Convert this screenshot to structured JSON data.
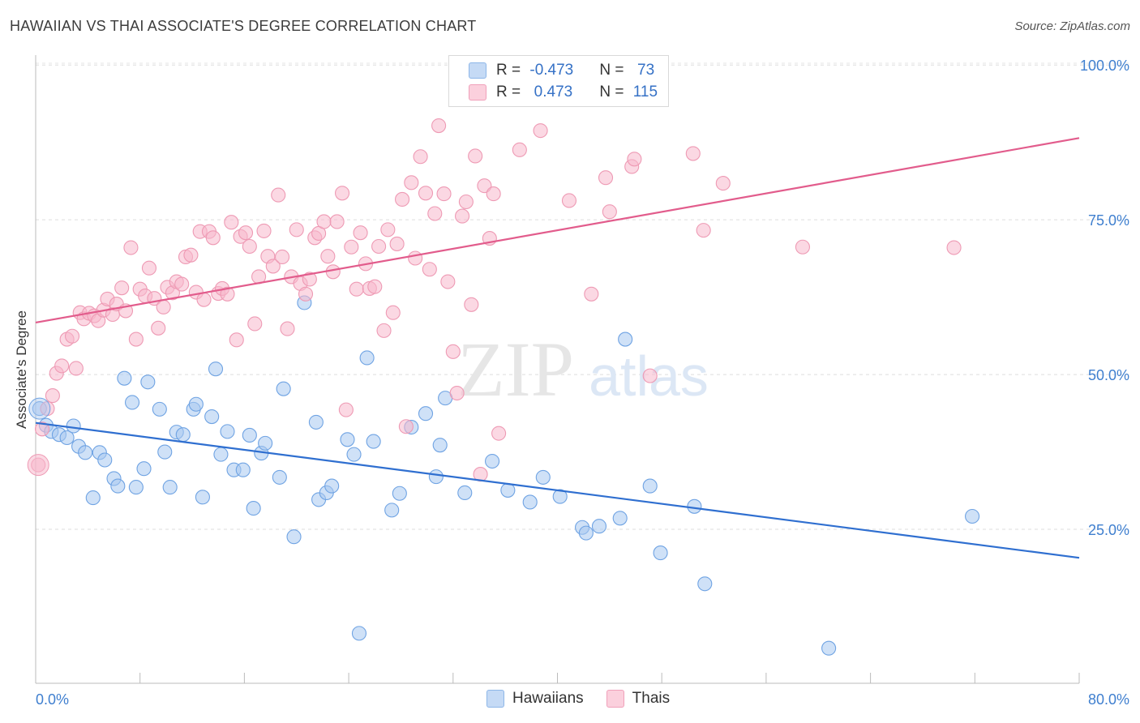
{
  "header": {
    "title": "HAWAIIAN VS THAI ASSOCIATE'S DEGREE CORRELATION CHART",
    "source": "Source: ZipAtlas.com"
  },
  "watermark": {
    "part1": "ZIP",
    "part2": "atlas"
  },
  "legend": {
    "rows": [
      {
        "r_label": "R = ",
        "r_value": "-0.473",
        "n_label": "N = ",
        "n_value": " 73",
        "color": "#a8c8f0"
      },
      {
        "r_label": "R = ",
        "r_value": " 0.473",
        "n_label": "N = ",
        "n_value": "115",
        "color": "#f8b8cc"
      }
    ],
    "bottom": [
      {
        "label": "Hawaiians",
        "color": "#a8c8f0"
      },
      {
        "label": "Thais",
        "color": "#f8b8cc"
      }
    ]
  },
  "chart_data": {
    "type": "scatter",
    "title": "HAWAIIAN VS THAI ASSOCIATE'S DEGREE CORRELATION CHART",
    "xlabel": "",
    "ylabel": "Associate's Degree",
    "xlim": [
      0,
      80
    ],
    "ylim": [
      0,
      105
    ],
    "x_tick_labels": [
      "0.0%",
      "80.0%"
    ],
    "y_ticks": [
      25,
      50,
      75,
      100
    ],
    "y_tick_labels": [
      "25.0%",
      "50.0%",
      "75.0%",
      "100.0%"
    ],
    "grid": true,
    "series": [
      {
        "name": "Hawaiians",
        "color": "#6fa3e3",
        "fill": "#a8c8f0",
        "trend": {
          "x": [
            0,
            80
          ],
          "y": [
            42.2,
            20.4
          ],
          "color": "#2f6fd0"
        },
        "points": [
          [
            0.3,
            44.5
          ],
          [
            0.8,
            41.8
          ],
          [
            1.2,
            40.8
          ],
          [
            1.8,
            40.3
          ],
          [
            2.4,
            39.8
          ],
          [
            2.9,
            41.7
          ],
          [
            3.3,
            38.4
          ],
          [
            3.8,
            37.4
          ],
          [
            4.4,
            30.1
          ],
          [
            4.9,
            37.4
          ],
          [
            5.3,
            36.2
          ],
          [
            6.0,
            33.2
          ],
          [
            6.3,
            32.0
          ],
          [
            6.8,
            49.4
          ],
          [
            7.4,
            45.5
          ],
          [
            7.7,
            31.8
          ],
          [
            8.3,
            34.8
          ],
          [
            8.6,
            48.8
          ],
          [
            9.5,
            44.4
          ],
          [
            9.9,
            37.5
          ],
          [
            10.3,
            31.8
          ],
          [
            10.8,
            40.7
          ],
          [
            11.3,
            40.3
          ],
          [
            12.1,
            44.4
          ],
          [
            12.3,
            45.2
          ],
          [
            12.8,
            30.2
          ],
          [
            13.5,
            43.2
          ],
          [
            13.8,
            50.9
          ],
          [
            14.2,
            37.1
          ],
          [
            14.7,
            40.8
          ],
          [
            15.2,
            34.6
          ],
          [
            15.9,
            34.6
          ],
          [
            16.4,
            40.2
          ],
          [
            16.7,
            28.4
          ],
          [
            17.3,
            37.3
          ],
          [
            17.6,
            38.9
          ],
          [
            18.7,
            33.4
          ],
          [
            19.0,
            47.7
          ],
          [
            19.8,
            23.8
          ],
          [
            20.6,
            61.6
          ],
          [
            21.5,
            42.3
          ],
          [
            21.7,
            29.8
          ],
          [
            22.3,
            30.9
          ],
          [
            22.7,
            32.0
          ],
          [
            23.9,
            39.5
          ],
          [
            24.4,
            37.1
          ],
          [
            24.8,
            8.2
          ],
          [
            25.4,
            52.7
          ],
          [
            25.9,
            39.2
          ],
          [
            27.3,
            28.1
          ],
          [
            27.9,
            30.8
          ],
          [
            28.8,
            41.5
          ],
          [
            29.9,
            43.7
          ],
          [
            30.7,
            33.5
          ],
          [
            31.0,
            38.6
          ],
          [
            31.4,
            46.2
          ],
          [
            32.9,
            30.9
          ],
          [
            35.0,
            36.0
          ],
          [
            36.2,
            31.3
          ],
          [
            37.9,
            29.4
          ],
          [
            38.9,
            33.4
          ],
          [
            40.2,
            30.3
          ],
          [
            41.9,
            25.3
          ],
          [
            42.2,
            24.4
          ],
          [
            43.2,
            25.5
          ],
          [
            44.8,
            26.8
          ],
          [
            45.2,
            55.7
          ],
          [
            47.1,
            32.0
          ],
          [
            47.9,
            21.2
          ],
          [
            50.5,
            28.7
          ],
          [
            51.3,
            16.2
          ],
          [
            60.8,
            5.8
          ],
          [
            71.8,
            27.1
          ]
        ]
      },
      {
        "name": "Thais",
        "color": "#ee9ab4",
        "fill": "#f8b8cc",
        "trend": {
          "x": [
            0,
            80
          ],
          "y": [
            58.4,
            88.2
          ],
          "color": "#e25c8c"
        },
        "points": [
          [
            0.2,
            35.4
          ],
          [
            0.5,
            41.2
          ],
          [
            0.9,
            44.5
          ],
          [
            1.3,
            46.6
          ],
          [
            1.6,
            50.2
          ],
          [
            2.0,
            51.4
          ],
          [
            2.4,
            55.7
          ],
          [
            2.8,
            56.2
          ],
          [
            3.1,
            51.0
          ],
          [
            3.4,
            60.0
          ],
          [
            3.7,
            59.0
          ],
          [
            4.1,
            59.9
          ],
          [
            4.5,
            59.5
          ],
          [
            4.8,
            58.7
          ],
          [
            5.2,
            60.4
          ],
          [
            5.5,
            62.2
          ],
          [
            5.9,
            59.7
          ],
          [
            6.2,
            61.4
          ],
          [
            6.6,
            64.0
          ],
          [
            6.9,
            60.3
          ],
          [
            7.3,
            70.5
          ],
          [
            7.7,
            55.7
          ],
          [
            8.0,
            63.8
          ],
          [
            8.4,
            62.7
          ],
          [
            8.7,
            67.2
          ],
          [
            9.1,
            62.3
          ],
          [
            9.4,
            57.5
          ],
          [
            9.8,
            60.9
          ],
          [
            10.1,
            64.1
          ],
          [
            10.5,
            63.2
          ],
          [
            10.8,
            65.0
          ],
          [
            11.2,
            64.6
          ],
          [
            11.5,
            69.0
          ],
          [
            11.9,
            69.3
          ],
          [
            12.3,
            63.3
          ],
          [
            12.6,
            73.1
          ],
          [
            12.9,
            62.1
          ],
          [
            13.3,
            73.1
          ],
          [
            13.6,
            72.1
          ],
          [
            14.0,
            63.1
          ],
          [
            14.3,
            63.9
          ],
          [
            14.7,
            63.0
          ],
          [
            15.0,
            74.6
          ],
          [
            15.4,
            55.6
          ],
          [
            15.7,
            72.3
          ],
          [
            16.1,
            72.9
          ],
          [
            16.4,
            70.7
          ],
          [
            16.8,
            58.2
          ],
          [
            17.1,
            65.8
          ],
          [
            17.5,
            73.2
          ],
          [
            17.8,
            69.1
          ],
          [
            18.2,
            67.5
          ],
          [
            18.6,
            79.0
          ],
          [
            18.9,
            69.0
          ],
          [
            19.3,
            57.4
          ],
          [
            19.6,
            65.8
          ],
          [
            20.0,
            73.4
          ],
          [
            20.3,
            64.7
          ],
          [
            20.7,
            63.0
          ],
          [
            21.0,
            65.4
          ],
          [
            21.4,
            72.1
          ],
          [
            21.7,
            72.8
          ],
          [
            22.1,
            74.7
          ],
          [
            22.4,
            69.1
          ],
          [
            22.8,
            66.6
          ],
          [
            23.1,
            74.7
          ],
          [
            23.5,
            79.3
          ],
          [
            23.8,
            44.3
          ],
          [
            24.2,
            70.6
          ],
          [
            24.6,
            63.8
          ],
          [
            24.9,
            72.9
          ],
          [
            25.3,
            67.9
          ],
          [
            25.6,
            63.9
          ],
          [
            26.0,
            64.2
          ],
          [
            26.3,
            70.7
          ],
          [
            26.7,
            57.1
          ],
          [
            27.0,
            73.4
          ],
          [
            27.4,
            60.0
          ],
          [
            27.7,
            71.1
          ],
          [
            28.1,
            78.3
          ],
          [
            28.4,
            41.6
          ],
          [
            28.8,
            81.0
          ],
          [
            29.1,
            68.8
          ],
          [
            29.5,
            85.2
          ],
          [
            29.9,
            79.3
          ],
          [
            30.2,
            67.0
          ],
          [
            30.6,
            76.0
          ],
          [
            30.9,
            90.2
          ],
          [
            31.3,
            79.2
          ],
          [
            31.6,
            65.0
          ],
          [
            32.0,
            53.7
          ],
          [
            32.3,
            47.0
          ],
          [
            32.7,
            75.6
          ],
          [
            33.0,
            77.9
          ],
          [
            33.4,
            61.3
          ],
          [
            33.7,
            85.3
          ],
          [
            34.1,
            33.9
          ],
          [
            34.4,
            80.5
          ],
          [
            34.8,
            72.0
          ],
          [
            35.1,
            79.2
          ],
          [
            35.5,
            40.5
          ],
          [
            37.1,
            86.3
          ],
          [
            38.7,
            89.4
          ],
          [
            40.9,
            78.1
          ],
          [
            42.6,
            63.0
          ],
          [
            43.7,
            81.8
          ],
          [
            44.0,
            76.3
          ],
          [
            45.7,
            83.6
          ],
          [
            45.9,
            84.8
          ],
          [
            47.1,
            49.8
          ],
          [
            50.4,
            85.7
          ],
          [
            51.2,
            73.3
          ],
          [
            52.7,
            80.9
          ],
          [
            58.8,
            70.6
          ],
          [
            70.4,
            70.5
          ]
        ]
      }
    ]
  }
}
